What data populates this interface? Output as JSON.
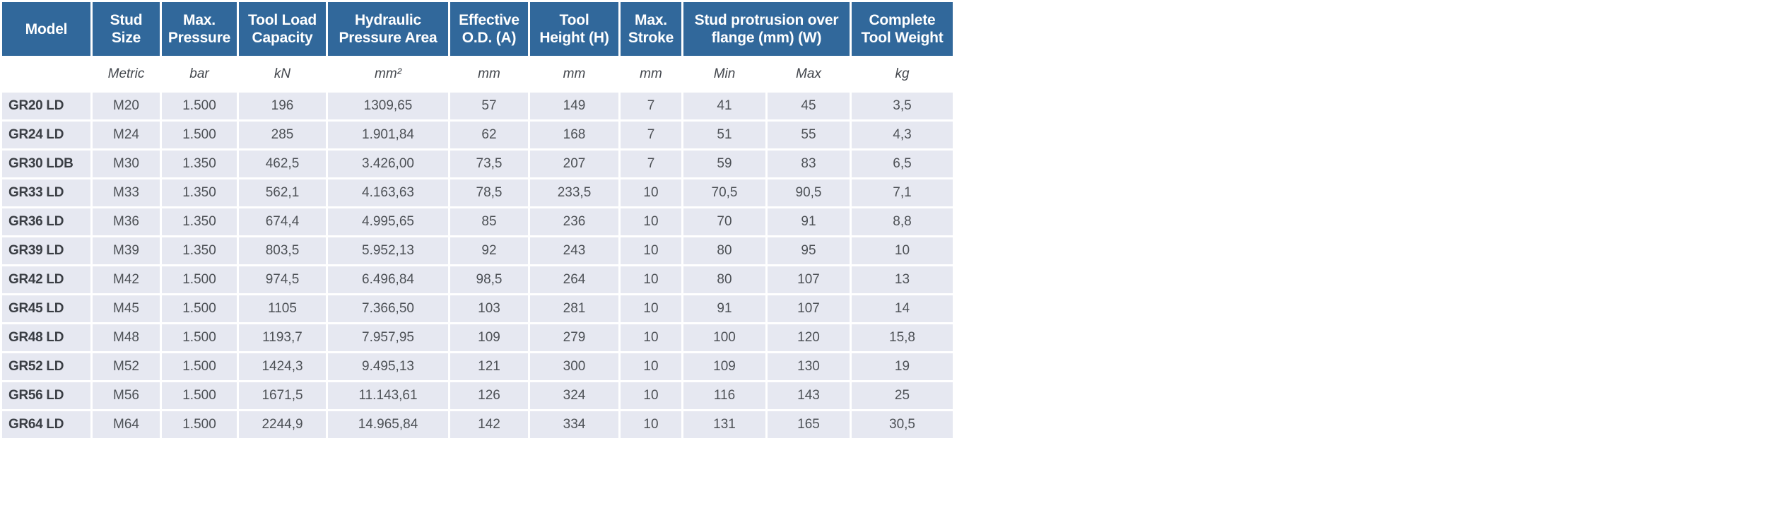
{
  "page": {
    "background_color": "#ffffff"
  },
  "table": {
    "header_bg_color": "#31689b",
    "header_text_color": "#ffffff",
    "cell_bg_color": "#e6e8f1",
    "data_text_color": "#4d5156",
    "columns": [
      {
        "label": "Model",
        "colspan": 1
      },
      {
        "label": "Stud\nSize",
        "colspan": 1
      },
      {
        "label": "Max.\nPressure",
        "colspan": 1
      },
      {
        "label": "Tool Load\nCapacity",
        "colspan": 1
      },
      {
        "label": "Hydraulic\nPressure Area",
        "colspan": 1
      },
      {
        "label": "Effective\nO.D. (A)",
        "colspan": 1
      },
      {
        "label": "Tool\nHeight (H)",
        "colspan": 1
      },
      {
        "label": "Max.\nStroke",
        "colspan": 1
      },
      {
        "label": "Stud protrusion over\nflange (mm) (W)",
        "colspan": 2
      },
      {
        "label": "Complete\nTool Weight",
        "colspan": 1
      }
    ],
    "units": [
      "",
      "Metric",
      "bar",
      "kN",
      "mm²",
      "mm",
      "mm",
      "mm",
      "Min",
      "Max",
      "kg"
    ],
    "rows": [
      [
        "GR20 LD",
        "M20",
        "1.500",
        "196",
        "1309,65",
        "57",
        "149",
        "7",
        "41",
        "45",
        "3,5"
      ],
      [
        "GR24 LD",
        "M24",
        "1.500",
        "285",
        "1.901,84",
        "62",
        "168",
        "7",
        "51",
        "55",
        "4,3"
      ],
      [
        "GR30 LDB",
        "M30",
        "1.350",
        "462,5",
        "3.426,00",
        "73,5",
        "207",
        "7",
        "59",
        "83",
        "6,5"
      ],
      [
        "GR33 LD",
        "M33",
        "1.350",
        "562,1",
        "4.163,63",
        "78,5",
        "233,5",
        "10",
        "70,5",
        "90,5",
        "7,1"
      ],
      [
        "GR36 LD",
        "M36",
        "1.350",
        "674,4",
        "4.995,65",
        "85",
        "236",
        "10",
        "70",
        "91",
        "8,8"
      ],
      [
        "GR39 LD",
        "M39",
        "1.350",
        "803,5",
        "5.952,13",
        "92",
        "243",
        "10",
        "80",
        "95",
        "10"
      ],
      [
        "GR42 LD",
        "M42",
        "1.500",
        "974,5",
        "6.496,84",
        "98,5",
        "264",
        "10",
        "80",
        "107",
        "13"
      ],
      [
        "GR45 LD",
        "M45",
        "1.500",
        "1105",
        "7.366,50",
        "103",
        "281",
        "10",
        "91",
        "107",
        "14"
      ],
      [
        "GR48 LD",
        "M48",
        "1.500",
        "1193,7",
        "7.957,95",
        "109",
        "279",
        "10",
        "100",
        "120",
        "15,8"
      ],
      [
        "GR52 LD",
        "M52",
        "1.500",
        "1424,3",
        "9.495,13",
        "121",
        "300",
        "10",
        "109",
        "130",
        "19"
      ],
      [
        "GR56 LD",
        "M56",
        "1.500",
        "1671,5",
        "11.143,61",
        "126",
        "324",
        "10",
        "116",
        "143",
        "25"
      ],
      [
        "GR64 LD",
        "M64",
        "1.500",
        "2244,9",
        "14.965,84",
        "142",
        "334",
        "10",
        "131",
        "165",
        "30,5"
      ]
    ]
  }
}
